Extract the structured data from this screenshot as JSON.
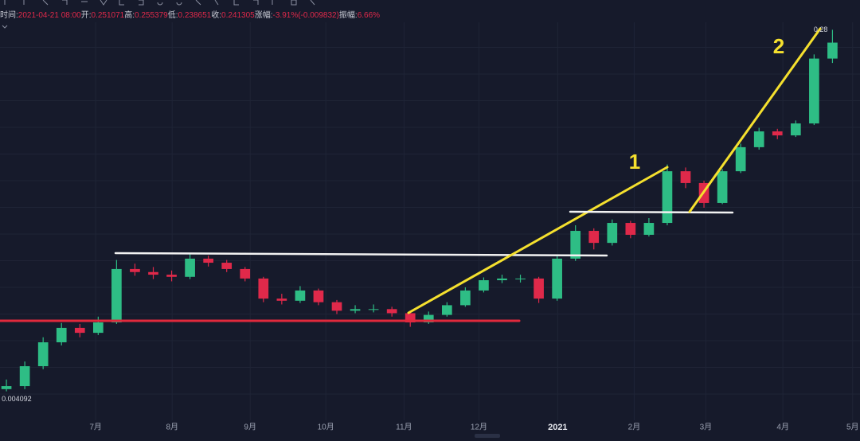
{
  "info": [
    {
      "label": "时间:",
      "value": "2021-04-21 08:00"
    },
    {
      "label": "开:",
      "value": "0.251071"
    },
    {
      "label": "高:",
      "value": "0.255379"
    },
    {
      "label": "低:",
      "value": "0.238651"
    },
    {
      "label": "收:",
      "value": "0.241305"
    },
    {
      "label": "涨幅:",
      "value": "-3.91%(-0.009832)"
    },
    {
      "label": "振幅:",
      "value": "6.66%"
    }
  ],
  "annotations": [
    "1",
    "2"
  ],
  "chart_data": {
    "type": "candlestick",
    "log_scale": true,
    "up_color": "#2ebd85",
    "down_color": "#e0294a",
    "x": [
      0,
      1,
      2,
      3,
      4,
      5,
      6,
      7,
      8,
      9,
      10,
      11,
      12,
      13,
      14,
      15,
      16,
      17,
      18,
      19,
      20,
      21,
      22,
      23,
      24,
      25,
      26,
      27,
      28,
      29,
      30,
      31,
      32,
      33,
      34,
      35,
      36,
      37,
      38,
      39,
      40,
      41,
      42,
      43,
      44,
      45
    ],
    "open": [
      0.0042,
      0.00435,
      0.00549,
      0.00726,
      0.00859,
      0.00811,
      0.00916,
      0.0171,
      0.0165,
      0.016,
      0.0156,
      0.0193,
      0.0184,
      0.0171,
      0.0153,
      0.0121,
      0.0118,
      0.0133,
      0.0116,
      0.0105,
      0.0107,
      0.0107,
      0.0102,
      0.00916,
      0.01,
      0.0112,
      0.0133,
      0.015,
      0.0153,
      0.0153,
      0.0121,
      0.0193,
      0.0267,
      0.0232,
      0.0293,
      0.0255,
      0.0293,
      0.0536,
      0.0467,
      0.037,
      0.0536,
      0.071,
      0.0854,
      0.0815,
      0.0937,
      0.2
    ],
    "high": [
      0.0047,
      0.0058,
      0.0077,
      0.0091,
      0.009,
      0.0098,
      0.019,
      0.0182,
      0.0175,
      0.0168,
      0.0205,
      0.02,
      0.019,
      0.0175,
      0.0156,
      0.0128,
      0.014,
      0.0136,
      0.0119,
      0.0112,
      0.0113,
      0.011,
      0.0105,
      0.0104,
      0.0116,
      0.0138,
      0.0155,
      0.016,
      0.016,
      0.0156,
      0.02,
      0.0285,
      0.0275,
      0.0305,
      0.03,
      0.031,
      0.058,
      0.056,
      0.048,
      0.055,
      0.074,
      0.089,
      0.088,
      0.097,
      0.21,
      0.28
    ],
    "low": [
      0.004092,
      0.0042,
      0.0053,
      0.007,
      0.0077,
      0.0079,
      0.009,
      0.0158,
      0.0152,
      0.0148,
      0.0152,
      0.0176,
      0.0165,
      0.0148,
      0.0116,
      0.0113,
      0.0115,
      0.0112,
      0.0101,
      0.0102,
      0.0103,
      0.0098,
      0.0087,
      0.009,
      0.0098,
      0.011,
      0.013,
      0.0145,
      0.0146,
      0.0115,
      0.0118,
      0.0188,
      0.0215,
      0.0225,
      0.0245,
      0.025,
      0.0285,
      0.044,
      0.035,
      0.0365,
      0.0525,
      0.069,
      0.078,
      0.08,
      0.092,
      0.19
    ],
    "close": [
      0.00435,
      0.00549,
      0.00726,
      0.00859,
      0.00811,
      0.00916,
      0.0171,
      0.0165,
      0.016,
      0.0156,
      0.0193,
      0.0184,
      0.0171,
      0.0153,
      0.0121,
      0.0118,
      0.0133,
      0.0116,
      0.0105,
      0.0107,
      0.0107,
      0.0102,
      0.00916,
      0.01,
      0.0112,
      0.0133,
      0.015,
      0.0153,
      0.0153,
      0.0121,
      0.0193,
      0.0267,
      0.0232,
      0.0293,
      0.0255,
      0.0293,
      0.0536,
      0.0467,
      0.037,
      0.0536,
      0.071,
      0.0854,
      0.0815,
      0.0937,
      0.2,
      0.241
    ],
    "extremes": [
      0.004092,
      0.28
    ],
    "xlim": [
      -0.35,
      46.5
    ],
    "ylim": [
      0.003,
      0.3
    ],
    "xticks": [
      {
        "value": 4.86,
        "label": "7月"
      },
      {
        "value": 9.03,
        "label": "8月"
      },
      {
        "value": 13.28,
        "label": "9月"
      },
      {
        "value": 17.4,
        "label": "10月"
      },
      {
        "value": 21.66,
        "label": "11月"
      },
      {
        "value": 25.74,
        "label": "12月"
      },
      {
        "value": 30.03,
        "label": "2021"
      },
      {
        "value": 34.2,
        "label": "2月"
      },
      {
        "value": 38.1,
        "label": "3月"
      },
      {
        "value": 42.3,
        "label": "4月"
      },
      {
        "value": 46.1,
        "label": "5月"
      }
    ],
    "grid": true
  }
}
